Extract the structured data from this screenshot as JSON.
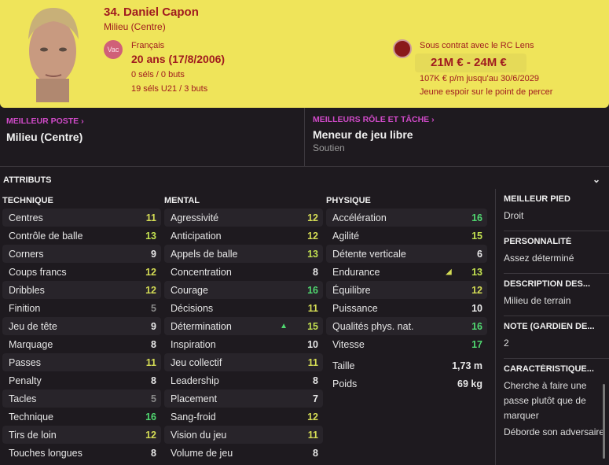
{
  "header": {
    "name": "34. Daniel Capon",
    "position": "Milieu (Centre)",
    "nation_badge": "Vac",
    "nationality": "Français",
    "age": "20 ans (17/8/2006)",
    "caps": "0 séls / 0 buts",
    "u21": "19 séls U21 / 3 buts",
    "contract": "Sous contrat avec le RC Lens",
    "value": "21M € - 24M €",
    "wage": "107K € p/m jusqu'au 30/6/2029",
    "status": "Jeune espoir sur le point de percer"
  },
  "best_position": {
    "label": "MEILLEUR POSTE",
    "value": "Milieu (Centre)"
  },
  "best_role": {
    "label": "MEILLEURS RÔLE ET TÂCHE",
    "value": "Meneur de jeu libre",
    "duty": "Soutien"
  },
  "attributes_title": "ATTRIBUTS",
  "columns": [
    {
      "title": "TECHNIQUE",
      "items": [
        {
          "n": "Centres",
          "v": 11
        },
        {
          "n": "Contrôle de balle",
          "v": 13
        },
        {
          "n": "Corners",
          "v": 9
        },
        {
          "n": "Coups francs",
          "v": 12
        },
        {
          "n": "Dribbles",
          "v": 12
        },
        {
          "n": "Finition",
          "v": 5
        },
        {
          "n": "Jeu de tête",
          "v": 9
        },
        {
          "n": "Marquage",
          "v": 8
        },
        {
          "n": "Passes",
          "v": 11
        },
        {
          "n": "Penalty",
          "v": 8
        },
        {
          "n": "Tacles",
          "v": 5
        },
        {
          "n": "Technique",
          "v": 16
        },
        {
          "n": "Tirs de loin",
          "v": 12
        },
        {
          "n": "Touches longues",
          "v": 8
        }
      ]
    },
    {
      "title": "MENTAL",
      "items": [
        {
          "n": "Agressivité",
          "v": 12
        },
        {
          "n": "Anticipation",
          "v": 12
        },
        {
          "n": "Appels de balle",
          "v": 13
        },
        {
          "n": "Concentration",
          "v": 8
        },
        {
          "n": "Courage",
          "v": 16
        },
        {
          "n": "Décisions",
          "v": 11
        },
        {
          "n": "Détermination",
          "v": 15,
          "trend": "up"
        },
        {
          "n": "Inspiration",
          "v": 10
        },
        {
          "n": "Jeu collectif",
          "v": 11
        },
        {
          "n": "Leadership",
          "v": 8
        },
        {
          "n": "Placement",
          "v": 7
        },
        {
          "n": "Sang-froid",
          "v": 12
        },
        {
          "n": "Vision du jeu",
          "v": 11
        },
        {
          "n": "Volume de jeu",
          "v": 8
        }
      ]
    },
    {
      "title": "PHYSIQUE",
      "items": [
        {
          "n": "Accélération",
          "v": 16
        },
        {
          "n": "Agilité",
          "v": 15
        },
        {
          "n": "Détente verticale",
          "v": 6
        },
        {
          "n": "Endurance",
          "v": 13,
          "trend": "down"
        },
        {
          "n": "Équilibre",
          "v": 12
        },
        {
          "n": "Puissance",
          "v": 10
        },
        {
          "n": "Qualités phys. nat.",
          "v": 16
        },
        {
          "n": "Vitesse",
          "v": 17
        }
      ],
      "extra": [
        {
          "n": "Taille",
          "v": "1,73 m"
        },
        {
          "n": "Poids",
          "v": "69 kg"
        }
      ]
    }
  ],
  "side": [
    {
      "t": "MEILLEUR PIED",
      "d": "Droit"
    },
    {
      "t": "PERSONNALITÉ",
      "d": "Assez déterminé"
    },
    {
      "t": "DESCRIPTION DES...",
      "d": "Milieu de terrain"
    },
    {
      "t": "NOTE (GARDIEN DE...",
      "d": "2"
    },
    {
      "t": "CARACTÉRISTIQUE...",
      "d": "Cherche à faire une passe plutôt que de marquer"
    },
    {
      "t": "",
      "d": "Déborde son adversaire"
    }
  ],
  "colors": {
    "header_bg": "#efe45a",
    "header_text": "#a01b1f",
    "accent_pink": "#d04ac8",
    "low": "#8a8a8a",
    "mid": "#e8e8e8",
    "good": "#d4dc55",
    "very_good": "#c2e050",
    "excellent": "#50d870"
  }
}
